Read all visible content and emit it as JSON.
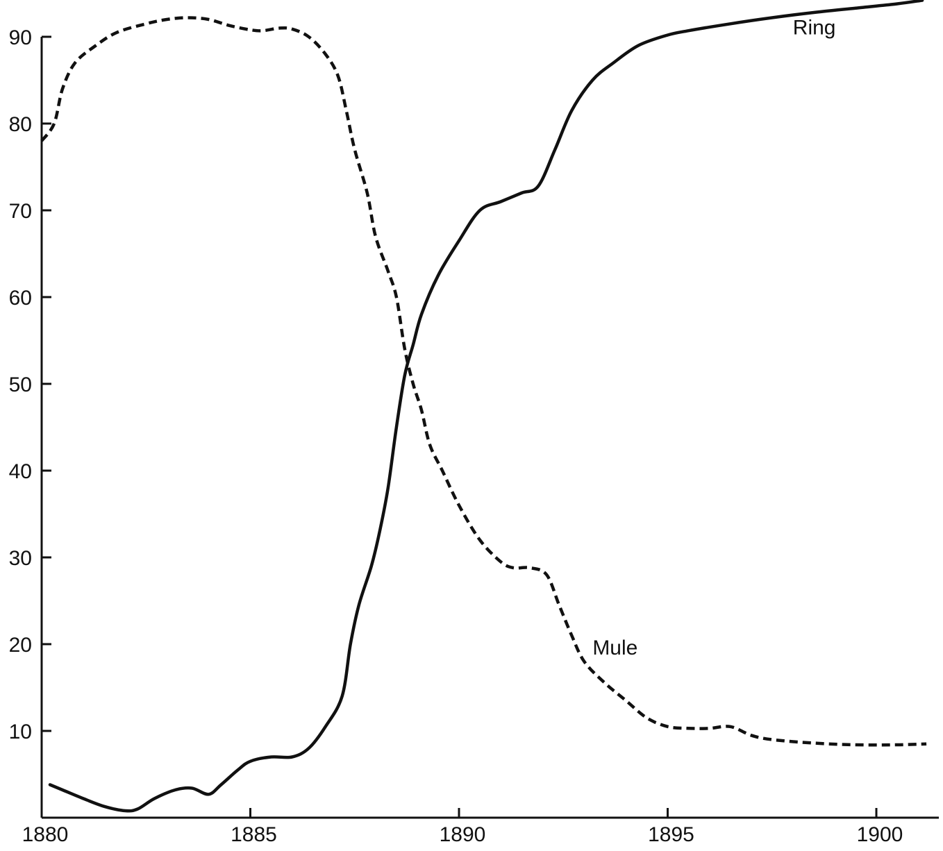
{
  "chart_data": {
    "type": "line",
    "title": "",
    "xlabel": "",
    "ylabel": "",
    "xlim": [
      1880,
      1901.5
    ],
    "ylim": [
      0,
      93
    ],
    "grid": false,
    "x_ticks": [
      1880,
      1885,
      1890,
      1895,
      1900
    ],
    "y_ticks": [
      10,
      20,
      30,
      40,
      50,
      60,
      70,
      80,
      90
    ],
    "x_tick_labels": [
      "1880",
      "1885",
      "1890",
      "1895",
      "1900"
    ],
    "y_tick_labels": [
      "10",
      "20",
      "30",
      "40",
      "50",
      "60",
      "70",
      "80",
      "90"
    ],
    "series": [
      {
        "name": "Ring",
        "style": "solid",
        "color": "#111111",
        "points": [
          [
            1880.2,
            3.8
          ],
          [
            1880.5,
            3.2
          ],
          [
            1881.0,
            2.2
          ],
          [
            1881.5,
            1.3
          ],
          [
            1882.0,
            0.8
          ],
          [
            1882.3,
            1.0
          ],
          [
            1882.7,
            2.2
          ],
          [
            1883.2,
            3.2
          ],
          [
            1883.6,
            3.4
          ],
          [
            1884.0,
            2.7
          ],
          [
            1884.3,
            3.8
          ],
          [
            1884.7,
            5.5
          ],
          [
            1885.0,
            6.5
          ],
          [
            1885.5,
            7.0
          ],
          [
            1886.0,
            7.0
          ],
          [
            1886.4,
            8.0
          ],
          [
            1886.8,
            10.5
          ],
          [
            1887.2,
            14.0
          ],
          [
            1887.4,
            20.0
          ],
          [
            1887.6,
            24.5
          ],
          [
            1887.9,
            29.0
          ],
          [
            1888.1,
            33.0
          ],
          [
            1888.3,
            38.0
          ],
          [
            1888.5,
            45.0
          ],
          [
            1888.7,
            51.0
          ],
          [
            1888.9,
            54.5
          ],
          [
            1889.1,
            58.0
          ],
          [
            1889.5,
            62.5
          ],
          [
            1890.0,
            66.5
          ],
          [
            1890.5,
            70.0
          ],
          [
            1891.0,
            71.0
          ],
          [
            1891.5,
            72.0
          ],
          [
            1891.9,
            72.8
          ],
          [
            1892.3,
            77.0
          ],
          [
            1892.7,
            81.5
          ],
          [
            1893.2,
            85.0
          ],
          [
            1893.7,
            87.0
          ],
          [
            1894.3,
            89.0
          ],
          [
            1895.0,
            90.2
          ],
          [
            1895.5,
            90.7
          ],
          [
            1896.5,
            91.5
          ],
          [
            1897.5,
            92.2
          ],
          [
            1898.5,
            92.8
          ],
          [
            1899.5,
            93.3
          ],
          [
            1900.5,
            93.8
          ],
          [
            1901.1,
            94.2
          ]
        ]
      },
      {
        "name": "Mule",
        "style": "dashed",
        "color": "#111111",
        "points": [
          [
            1880.0,
            78.0
          ],
          [
            1880.3,
            80.0
          ],
          [
            1880.5,
            84.0
          ],
          [
            1880.8,
            87.0
          ],
          [
            1881.3,
            89.0
          ],
          [
            1881.8,
            90.5
          ],
          [
            1882.5,
            91.5
          ],
          [
            1883.0,
            92.0
          ],
          [
            1883.5,
            92.2
          ],
          [
            1884.0,
            92.0
          ],
          [
            1884.5,
            91.3
          ],
          [
            1885.0,
            90.8
          ],
          [
            1885.3,
            90.7
          ],
          [
            1885.7,
            91.0
          ],
          [
            1886.0,
            90.9
          ],
          [
            1886.4,
            90.0
          ],
          [
            1886.8,
            88.0
          ],
          [
            1887.1,
            85.5
          ],
          [
            1887.3,
            81.5
          ],
          [
            1887.5,
            77.0
          ],
          [
            1887.8,
            72.0
          ],
          [
            1888.0,
            67.0
          ],
          [
            1888.3,
            63.0
          ],
          [
            1888.5,
            60.0
          ],
          [
            1888.7,
            54.0
          ],
          [
            1888.9,
            50.0
          ],
          [
            1889.1,
            47.0
          ],
          [
            1889.3,
            43.0
          ],
          [
            1889.6,
            40.0
          ],
          [
            1890.0,
            36.0
          ],
          [
            1890.5,
            32.0
          ],
          [
            1891.0,
            29.5
          ],
          [
            1891.3,
            28.8
          ],
          [
            1891.7,
            28.8
          ],
          [
            1892.1,
            28.0
          ],
          [
            1892.4,
            24.5
          ],
          [
            1892.7,
            21.0
          ],
          [
            1893.0,
            18.0
          ],
          [
            1893.5,
            15.5
          ],
          [
            1894.0,
            13.5
          ],
          [
            1894.5,
            11.5
          ],
          [
            1895.0,
            10.5
          ],
          [
            1895.5,
            10.3
          ],
          [
            1896.0,
            10.3
          ],
          [
            1896.5,
            10.5
          ],
          [
            1897.0,
            9.5
          ],
          [
            1897.5,
            9.0
          ],
          [
            1898.5,
            8.6
          ],
          [
            1899.5,
            8.4
          ],
          [
            1900.5,
            8.4
          ],
          [
            1901.2,
            8.5
          ]
        ]
      }
    ],
    "annotations": [
      {
        "text": "Ring",
        "series": "Ring",
        "x": 1898.0,
        "y": 90.3
      },
      {
        "text": "Mule",
        "series": "Mule",
        "x": 1893.2,
        "y": 18.8
      }
    ]
  }
}
